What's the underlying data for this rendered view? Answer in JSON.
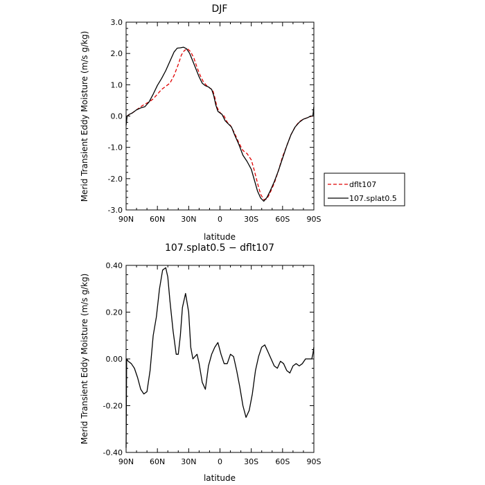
{
  "chart_data": [
    {
      "type": "line",
      "title": "DJF",
      "xlabel": "latitude",
      "ylabel": "Merid Transient Eddy Moisture (m/s g/kg)",
      "xlim": [
        90,
        -90
      ],
      "ylim": [
        -3.0,
        3.0
      ],
      "xticks": [
        90,
        60,
        30,
        0,
        -30,
        -60,
        -90
      ],
      "xtick_labels": [
        "90N",
        "60N",
        "30N",
        "0",
        "30S",
        "60S",
        "90S"
      ],
      "yticks": [
        -3,
        -2,
        -1,
        0,
        1,
        2,
        3
      ],
      "ytick_labels": [
        "-3.0",
        "-2.0",
        "-1.0",
        "0.0",
        "1.0",
        "2.0",
        "3.0"
      ],
      "grid": false,
      "legend_position": "outside-right",
      "series": [
        {
          "name": "dflt107",
          "color": "#e00000",
          "dash": "dashed",
          "x": [
            89,
            87,
            84,
            80,
            76,
            72,
            68,
            64,
            60,
            56,
            52,
            48,
            44,
            40,
            37,
            34,
            31,
            28,
            25,
            22,
            19,
            16,
            13,
            10,
            7,
            5,
            3,
            1,
            -1,
            -4,
            -7,
            -10,
            -14,
            -18,
            -22,
            -26,
            -30,
            -33,
            -36,
            -39,
            -42,
            -45,
            -48,
            -52,
            -56,
            -60,
            -64,
            -68,
            -72,
            -76,
            -80,
            -84,
            -88,
            -90
          ],
          "y": [
            0.0,
            0.05,
            0.1,
            0.2,
            0.3,
            0.38,
            0.45,
            0.55,
            0.7,
            0.85,
            0.95,
            1.05,
            1.3,
            1.65,
            1.95,
            2.1,
            2.15,
            2.05,
            1.85,
            1.55,
            1.3,
            1.1,
            0.98,
            0.9,
            0.83,
            0.6,
            0.3,
            0.15,
            0.08,
            0.0,
            -0.2,
            -0.3,
            -0.55,
            -0.85,
            -1.1,
            -1.2,
            -1.4,
            -1.75,
            -2.15,
            -2.5,
            -2.67,
            -2.65,
            -2.45,
            -2.15,
            -1.75,
            -1.3,
            -0.95,
            -0.6,
            -0.35,
            -0.18,
            -0.1,
            -0.05,
            0.0,
            0.0
          ]
        },
        {
          "name": "107.splat0.5",
          "color": "#000000",
          "dash": "solid",
          "x": [
            90,
            89,
            87,
            84,
            80,
            76,
            72,
            68,
            64,
            60,
            56,
            52,
            48,
            44,
            41,
            38,
            35,
            32,
            29,
            26,
            23,
            20,
            17,
            14,
            11,
            8,
            6,
            4,
            2,
            0,
            -2,
            -5,
            -8,
            -11,
            -14,
            -18,
            -22,
            -26,
            -30,
            -33,
            -36,
            -39,
            -42,
            -45,
            -48,
            -52,
            -56,
            -60,
            -64,
            -68,
            -72,
            -76,
            -80,
            -84,
            -87,
            -89,
            -90
          ],
          "y": [
            -0.3,
            0.0,
            0.05,
            0.1,
            0.2,
            0.26,
            0.3,
            0.45,
            0.7,
            0.98,
            1.2,
            1.45,
            1.75,
            2.05,
            2.17,
            2.18,
            2.2,
            2.15,
            2.0,
            1.75,
            1.5,
            1.25,
            1.05,
            0.97,
            0.93,
            0.85,
            0.65,
            0.35,
            0.15,
            0.1,
            0.05,
            -0.15,
            -0.25,
            -0.35,
            -0.6,
            -0.9,
            -1.25,
            -1.45,
            -1.7,
            -2.05,
            -2.4,
            -2.62,
            -2.72,
            -2.6,
            -2.4,
            -2.1,
            -1.75,
            -1.35,
            -0.95,
            -0.6,
            -0.35,
            -0.2,
            -0.1,
            -0.05,
            0.0,
            0.0,
            0.3
          ]
        }
      ]
    },
    {
      "type": "line",
      "title": "107.splat0.5 − dflt107",
      "xlabel": "latitude",
      "ylabel": "Merid Transient Eddy Moisture (m/s g/kg)",
      "xlim": [
        90,
        -90
      ],
      "ylim": [
        -0.4,
        0.4
      ],
      "xticks": [
        90,
        60,
        30,
        0,
        -30,
        -60,
        -90
      ],
      "xtick_labels": [
        "90N",
        "60N",
        "30N",
        "0",
        "30S",
        "60S",
        "90S"
      ],
      "yticks": [
        -0.4,
        -0.2,
        0.0,
        0.2,
        0.4
      ],
      "ytick_labels": [
        "-0.40",
        "-0.20",
        "0.00",
        "0.20",
        "0.40"
      ],
      "grid": false,
      "series": [
        {
          "name": "",
          "color": "#000000",
          "dash": "solid",
          "x": [
            90,
            89.5,
            88,
            85,
            82,
            79,
            76,
            73,
            70,
            67,
            64,
            61,
            58,
            55,
            52,
            50,
            48,
            45,
            42,
            40,
            38,
            36,
            33,
            30,
            28,
            26,
            24,
            22,
            20,
            17,
            14,
            11,
            8,
            5,
            2,
            -1,
            -4,
            -7,
            -10,
            -13,
            -16,
            -19,
            -22,
            -25,
            -28,
            -31,
            -34,
            -37,
            -40,
            -43,
            -46,
            -49,
            -52,
            -55,
            -58,
            -61,
            -64,
            -67,
            -70,
            -73,
            -76,
            -79,
            -82,
            -85,
            -88,
            -89,
            -90
          ],
          "y": [
            -0.38,
            0.0,
            -0.01,
            -0.02,
            -0.04,
            -0.08,
            -0.13,
            -0.15,
            -0.14,
            -0.05,
            0.1,
            0.18,
            0.3,
            0.38,
            0.39,
            0.35,
            0.25,
            0.12,
            0.02,
            0.02,
            0.1,
            0.22,
            0.28,
            0.2,
            0.05,
            0.0,
            0.01,
            0.02,
            -0.02,
            -0.1,
            -0.13,
            -0.03,
            0.02,
            0.05,
            0.07,
            0.02,
            -0.02,
            -0.02,
            0.02,
            0.01,
            -0.05,
            -0.12,
            -0.2,
            -0.25,
            -0.22,
            -0.15,
            -0.05,
            0.01,
            0.05,
            0.06,
            0.03,
            0.0,
            -0.03,
            -0.04,
            -0.01,
            -0.02,
            -0.05,
            -0.06,
            -0.03,
            -0.02,
            -0.03,
            -0.02,
            0.0,
            0.0,
            0.0,
            0.02,
            0.05
          ]
        }
      ]
    }
  ]
}
